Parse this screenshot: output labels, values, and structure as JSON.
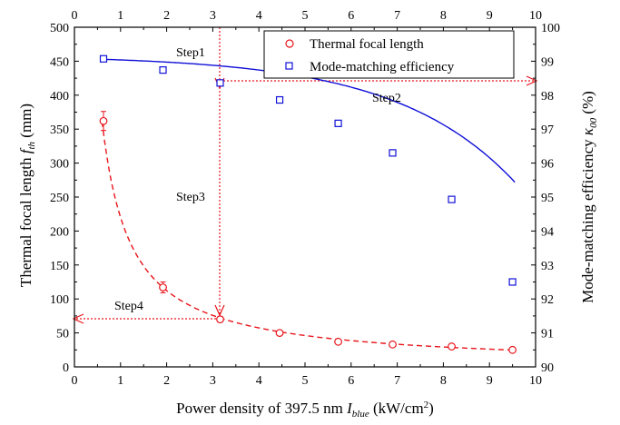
{
  "chart_data": {
    "type": "scatter",
    "x_axis": {
      "label_main": "Power density of 397.5 nm ",
      "label_var": "I",
      "label_sub": "blue",
      "label_unit": " (kW/cm",
      "label_sup": "2",
      "label_close": ")",
      "range": [
        0,
        10
      ],
      "ticks": [
        "0",
        "1",
        "2",
        "3",
        "4",
        "5",
        "6",
        "7",
        "8",
        "9",
        "10"
      ],
      "top_ticks": [
        "0",
        "1",
        "2",
        "3",
        "4",
        "5",
        "6",
        "7",
        "8",
        "9",
        "10"
      ]
    },
    "y_left": {
      "label_main": "Thermal focal length ",
      "label_var": "f",
      "label_sub": "th",
      "label_unit": " (mm)",
      "range": [
        0,
        500
      ],
      "ticks": [
        "0",
        "50",
        "100",
        "150",
        "200",
        "250",
        "300",
        "350",
        "400",
        "450",
        "500"
      ]
    },
    "y_right": {
      "label_main": "Mode-matching efficiency ",
      "label_var": "κ",
      "label_sub": "00",
      "label_unit": " (%)",
      "range": [
        90,
        100
      ],
      "ticks": [
        "90",
        "91",
        "92",
        "93",
        "94",
        "95",
        "96",
        "97",
        "98",
        "99",
        "100"
      ]
    },
    "series": [
      {
        "name": "Thermal focal length",
        "axis": "left",
        "marker": "circle",
        "color": "#e8141b",
        "fit_style": "dashed",
        "x": [
          0.63,
          1.92,
          3.16,
          4.45,
          5.72,
          6.9,
          8.18,
          9.5
        ],
        "y": [
          362,
          117,
          70,
          50,
          37,
          33,
          30,
          25
        ],
        "err": [
          14,
          8,
          4,
          3,
          3,
          2,
          2,
          2
        ],
        "fit": {
          "model": "power",
          "a": 220,
          "b": -0.97
        }
      },
      {
        "name": "Mode-matching efficiency",
        "axis": "right",
        "marker": "square",
        "color": "#1010d8",
        "fit_style": "solid",
        "x": [
          0.63,
          1.92,
          3.16,
          4.45,
          5.72,
          6.9,
          8.18,
          9.5
        ],
        "y": [
          99.07,
          98.74,
          98.36,
          97.86,
          97.17,
          96.3,
          94.93,
          92.5
        ],
        "err": [
          0.07,
          0.06,
          0.07,
          0.06,
          0.06,
          0.06,
          0.08,
          0.07
        ],
        "fit": {
          "model": "exp",
          "A": 99.17,
          "B": 0.09,
          "k": 0.39
        }
      }
    ],
    "annotations": [
      {
        "text": "Step1"
      },
      {
        "text": "Step2"
      },
      {
        "text": "Step3"
      },
      {
        "text": "Step4"
      }
    ],
    "legend_position": "top-right",
    "grid": false,
    "annotation_color": "#e8141b"
  }
}
